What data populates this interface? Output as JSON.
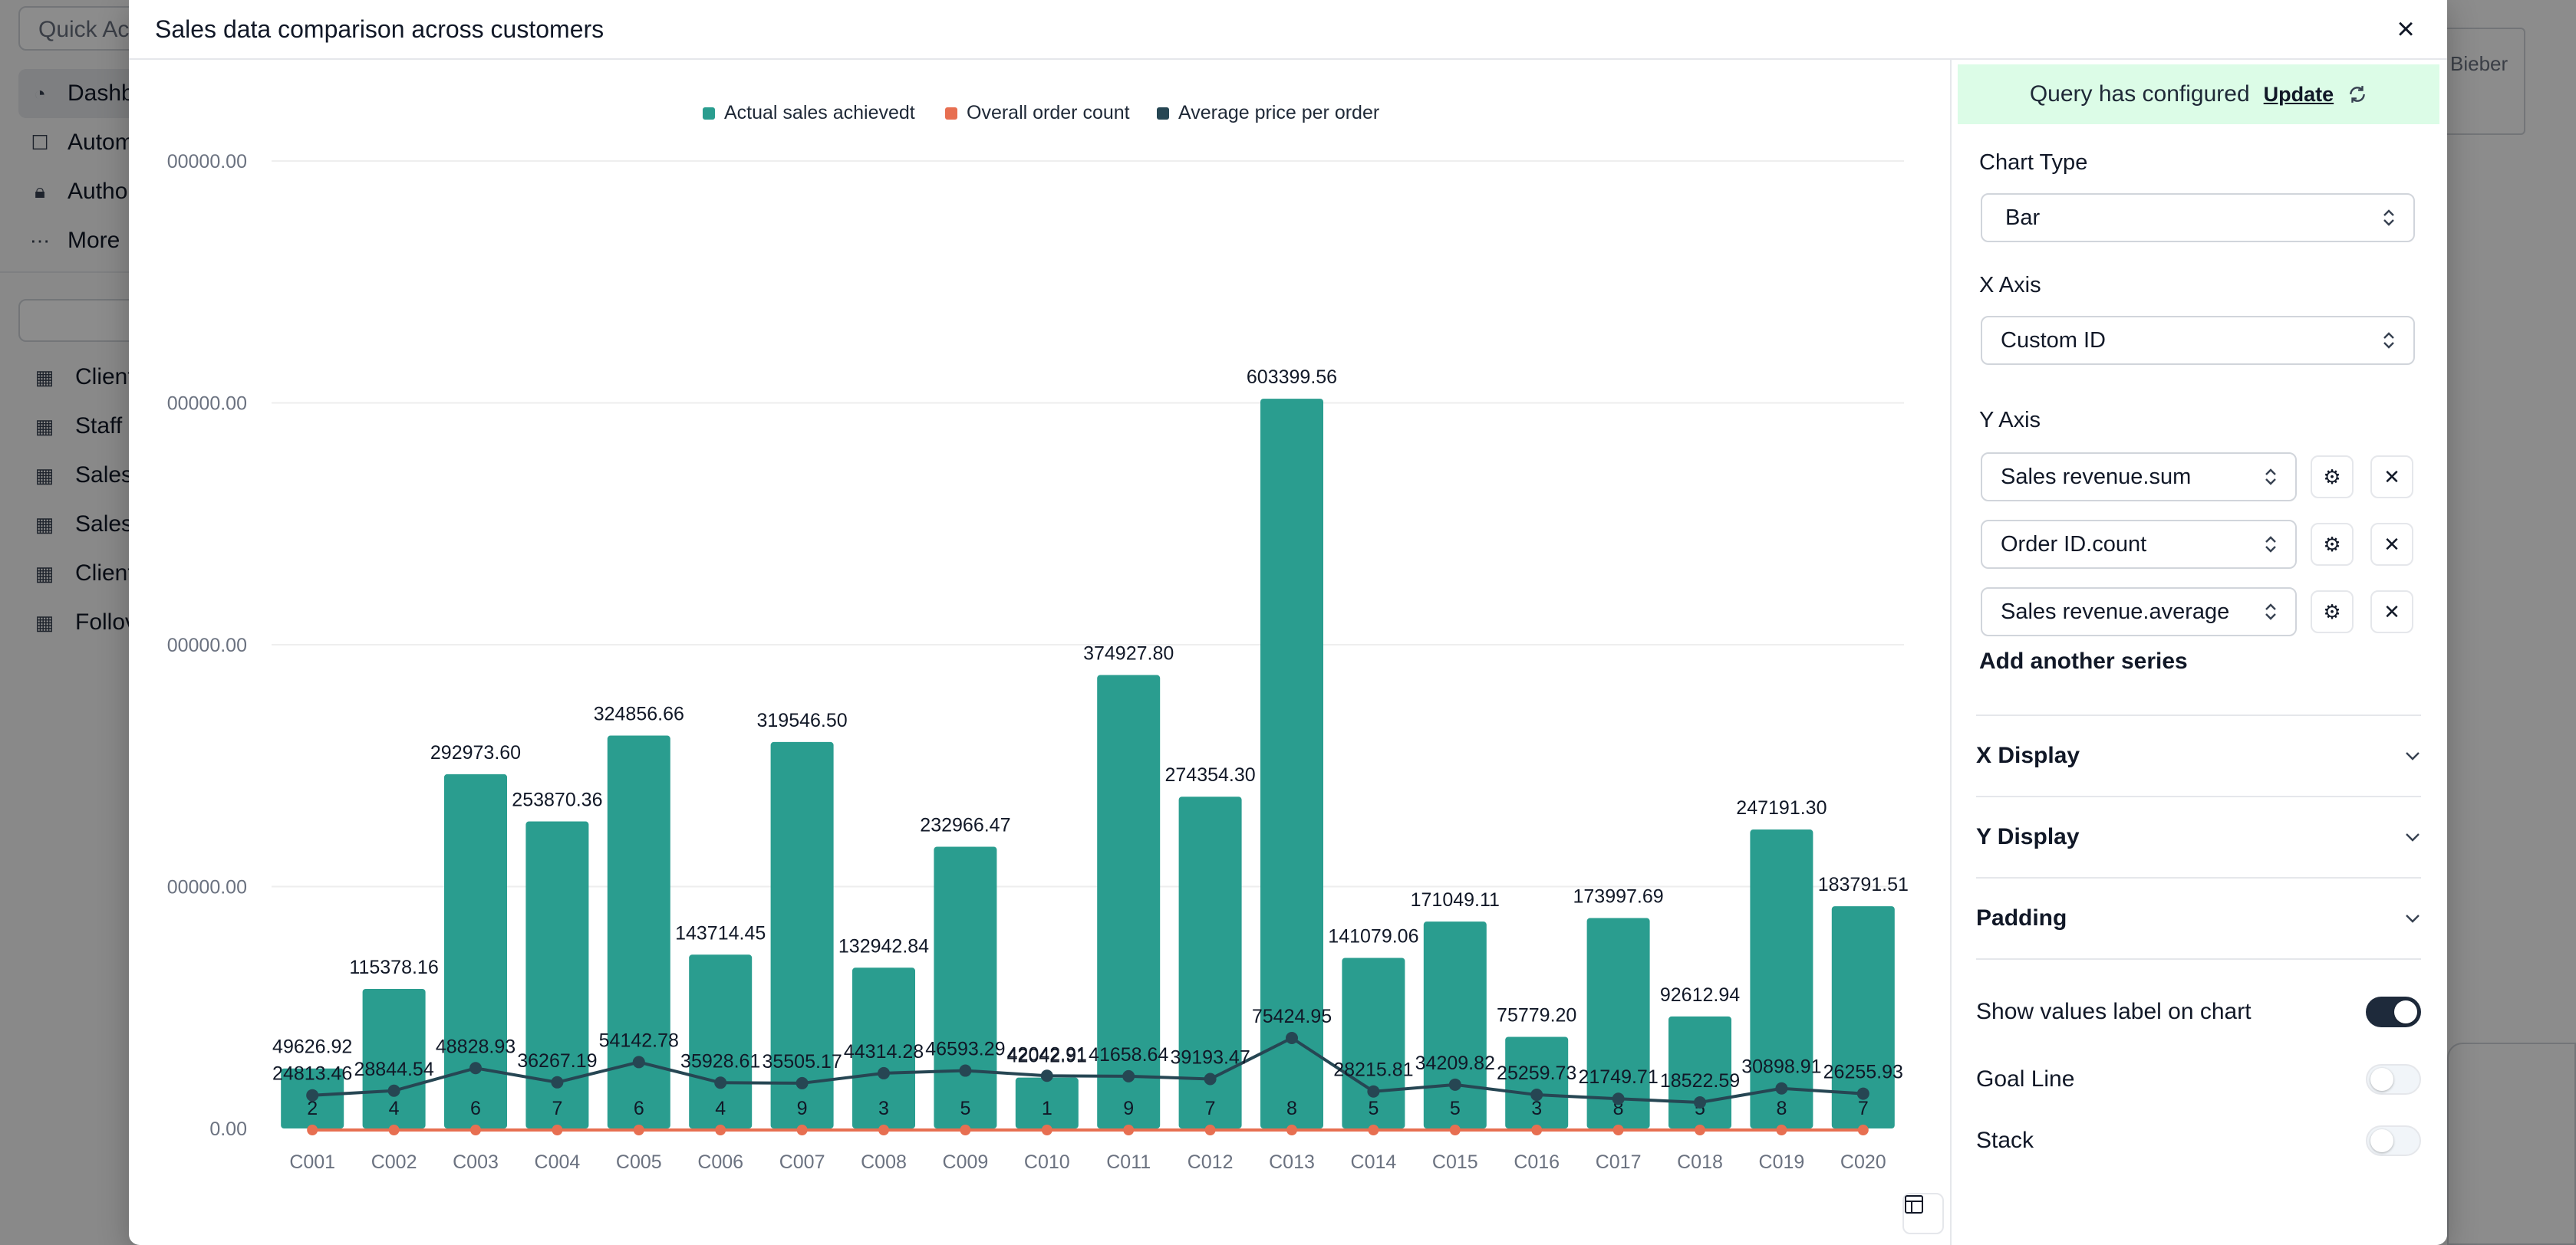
{
  "background": {
    "quick_action": "Quick Act",
    "nav_items": [
      {
        "label": "Dashb",
        "icon": "gauge-icon"
      },
      {
        "label": "Autom",
        "icon": "robot-icon"
      },
      {
        "label": "Author",
        "icon": "lock-icon"
      },
      {
        "label": "More",
        "icon": "dots-icon"
      }
    ],
    "table_items": [
      "Client",
      "Staff (",
      "Sales",
      "Sales",
      "Client",
      "Follov"
    ],
    "right_text": "Bieber"
  },
  "modal": {
    "title": "Sales data comparison across customers",
    "close_icon": "×"
  },
  "panel": {
    "query_status": "Query has configured",
    "update_label": "Update",
    "chart_type_label": "Chart Type",
    "chart_type_value": "Bar",
    "x_axis_label": "X Axis",
    "x_axis_value": "Custom ID",
    "y_axis_label": "Y Axis",
    "y_series": [
      "Sales revenue.sum",
      "Order ID.count",
      "Sales revenue.average"
    ],
    "add_series_label": "Add another series",
    "sections": [
      "X Display",
      "Y Display",
      "Padding"
    ],
    "toggles": [
      {
        "label": "Show values label on chart",
        "on": true
      },
      {
        "label": "Goal Line",
        "on": false
      },
      {
        "label": "Stack",
        "on": false
      }
    ]
  },
  "chart_data": {
    "type": "bar",
    "categories": [
      "C001",
      "C002",
      "C003",
      "C004",
      "C005",
      "C006",
      "C007",
      "C008",
      "C009",
      "C010",
      "C011",
      "C012",
      "C013",
      "C014",
      "C015",
      "C016",
      "C017",
      "C018",
      "C019",
      "C020"
    ],
    "y_tick_labels": [
      "0.00",
      "00000.00",
      "00000.00",
      "00000.00",
      "00000.00"
    ],
    "ylim": [
      0,
      800000
    ],
    "grid": true,
    "legend_position": "top",
    "series": [
      {
        "name": "Actual sales achievedt",
        "kind": "bar",
        "color": "#2a9d8f",
        "values": [
          49626.92,
          115378.16,
          292973.6,
          253870.36,
          324856.66,
          143714.45,
          319546.5,
          132942.84,
          232966.47,
          42042.91,
          374927.8,
          274354.3,
          603399.56,
          141079.06,
          171049.11,
          75779.2,
          173997.69,
          92612.94,
          247191.3,
          183791.51
        ],
        "labels": [
          "49626.92",
          "115378.16",
          "292973.60",
          "253870.36",
          "324856.66",
          "143714.45",
          "319546.50",
          "132942.84",
          "232966.47",
          "42042.91",
          "374927.80",
          "274354.30",
          "603399.56",
          "141079.06",
          "171049.11",
          "75779.20",
          "173997.69",
          "92612.94",
          "247191.30",
          "183791.51"
        ]
      },
      {
        "name": "Overall order count",
        "kind": "line",
        "color": "#e76f51",
        "values": [
          2,
          4,
          6,
          7,
          6,
          4,
          9,
          3,
          5,
          1,
          9,
          7,
          8,
          5,
          5,
          3,
          8,
          5,
          8,
          7
        ]
      },
      {
        "name": "Average price per order",
        "kind": "line",
        "color": "#264653",
        "values": [
          24813.46,
          28844.54,
          48828.93,
          36267.19,
          54142.78,
          35928.61,
          35505.17,
          44314.28,
          46593.29,
          42042.91,
          41658.64,
          39193.47,
          75424.95,
          28215.81,
          34209.82,
          25259.73,
          21749.71,
          18522.59,
          30898.91,
          26255.93
        ],
        "labels": [
          "24813.46",
          "28844.54",
          "48828.93",
          "36267.19",
          "54142.78",
          "35928.61",
          "35505.17",
          "44314.28",
          "46593.29",
          "42042.91",
          "41658.64",
          "39193.47",
          "75424.95",
          "28215.81",
          "34209.82",
          "25259.73",
          "21749.71",
          "18522.59",
          "30898.91",
          "26255.93"
        ]
      }
    ]
  }
}
